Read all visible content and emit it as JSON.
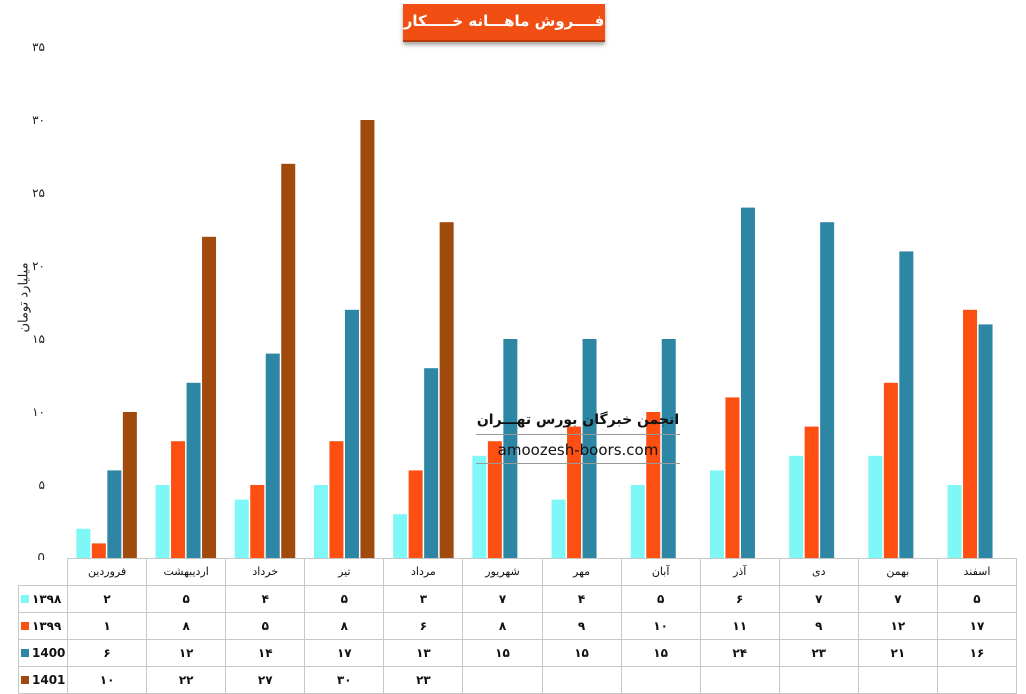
{
  "chart_data": {
    "type": "bar",
    "title": "فــــروش ماهـــانه خـــــکار",
    "ylabel": "میلیارد تومان",
    "ylim": [
      0,
      35
    ],
    "yticks": [
      "0",
      "۵",
      "۱۰",
      "۱۵",
      "۲۰",
      "۲۵",
      "۳۰",
      "۳۵"
    ],
    "categories": [
      "فروردین",
      "اردیبهشت",
      "خرداد",
      "تیر",
      "مرداد",
      "شهریور",
      "مهر",
      "آبان",
      "آذر",
      "دی",
      "بهمن",
      "اسفند"
    ],
    "series": [
      {
        "name": "۱۳۹۸",
        "color": "#7ff7f7",
        "values": [
          2,
          5,
          4,
          5,
          3,
          7,
          4,
          5,
          6,
          7,
          7,
          5
        ],
        "labels": [
          "۲",
          "۵",
          "۴",
          "۵",
          "۳",
          "۷",
          "۴",
          "۵",
          "۶",
          "۷",
          "۷",
          "۵"
        ]
      },
      {
        "name": "۱۳۹۹",
        "color": "#fd4f12",
        "values": [
          1,
          8,
          5,
          8,
          6,
          8,
          9,
          10,
          11,
          9,
          12,
          17
        ],
        "labels": [
          "۱",
          "۸",
          "۵",
          "۸",
          "۶",
          "۸",
          "۹",
          "۱۰",
          "۱۱",
          "۹",
          "۱۲",
          "۱۷"
        ]
      },
      {
        "name": "1400",
        "color": "#2e86a5",
        "values": [
          6,
          12,
          14,
          17,
          13,
          15,
          15,
          15,
          24,
          23,
          21,
          16
        ],
        "labels": [
          "۶",
          "۱۲",
          "۱۴",
          "۱۷",
          "۱۳",
          "۱۵",
          "۱۵",
          "۱۵",
          "۲۴",
          "۲۳",
          "۲۱",
          "۱۶"
        ]
      },
      {
        "name": "1401",
        "color": "#a14a0e",
        "values": [
          10,
          22,
          27,
          30,
          23,
          null,
          null,
          null,
          null,
          null,
          null,
          null
        ],
        "labels": [
          "۱۰",
          "۲۲",
          "۲۷",
          "۳۰",
          "۲۳",
          "",
          "",
          "",
          "",
          "",
          "",
          ""
        ]
      }
    ],
    "grid": false,
    "legend": "data-table"
  },
  "watermark": {
    "title": "انجمن خبرگان بورس تهـــران",
    "url": "amoozesh-boors.com"
  }
}
